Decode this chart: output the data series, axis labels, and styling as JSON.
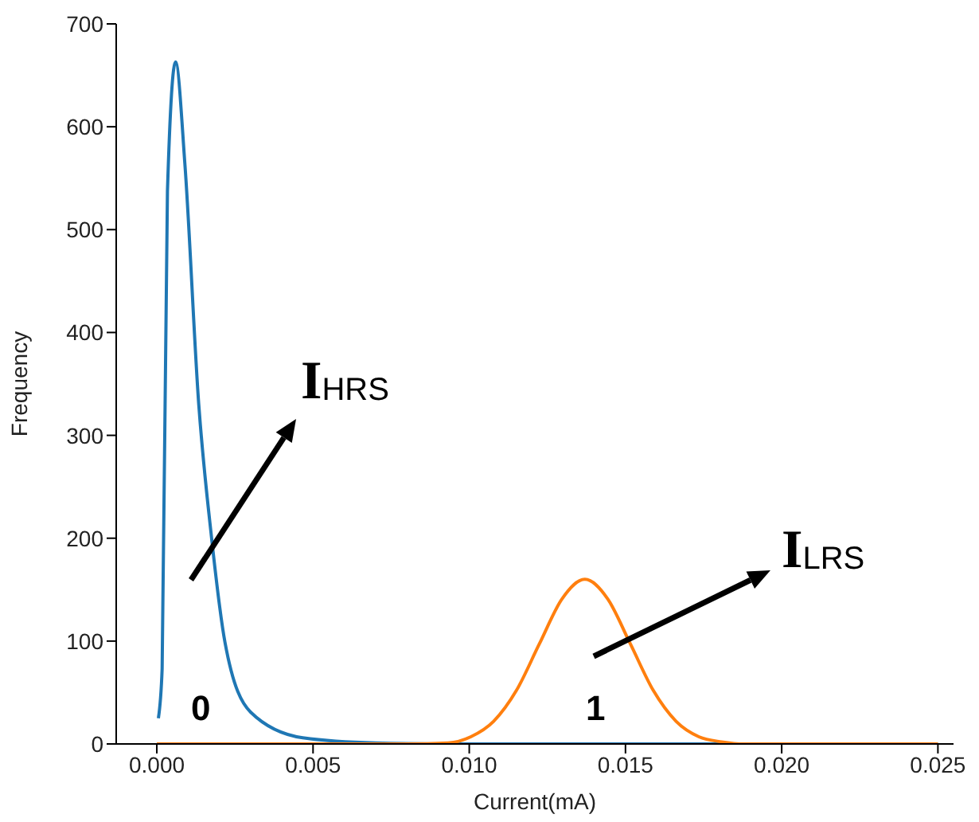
{
  "chart_data": {
    "type": "line",
    "xlabel": "Current(mA)",
    "ylabel": "Frequency",
    "xlim": [
      -0.0013,
      0.0255
    ],
    "ylim": [
      0,
      700
    ],
    "xticks": [
      {
        "value": 0,
        "label": "0.000"
      },
      {
        "value": 0.005,
        "label": "0.005"
      },
      {
        "value": 0.01,
        "label": "0.010"
      },
      {
        "value": 0.015,
        "label": "0.015"
      },
      {
        "value": 0.02,
        "label": "0.020"
      },
      {
        "value": 0.025,
        "label": "0.025"
      }
    ],
    "yticks": [
      0,
      100,
      200,
      300,
      400,
      500,
      600,
      700
    ],
    "grid": false,
    "marker": "none",
    "line_style": "solid",
    "series": [
      {
        "color": "#1f77b4",
        "x": [
          5e-05,
          0.00017,
          0.00034,
          0.0006,
          0.0009,
          0.00134,
          0.00175,
          0.00218,
          0.003,
          0.00467,
          0.007,
          0.01,
          0.015,
          0.02,
          0.025
        ],
        "values": [
          25,
          73,
          537,
          663,
          563,
          331,
          201,
          99,
          31,
          6,
          1,
          0,
          0,
          0,
          0
        ]
      },
      {
        "color": "#ff7f0e",
        "x": [
          0,
          0.008,
          0.00932,
          0.01005,
          0.01078,
          0.01151,
          0.01224,
          0.01297,
          0.0137,
          0.01443,
          0.01516,
          0.01589,
          0.01662,
          0.01735,
          0.01808,
          0.01881,
          0.021,
          0.025
        ],
        "values": [
          0,
          0,
          1,
          7,
          22,
          52,
          97,
          141,
          160,
          141,
          97,
          52,
          22,
          7,
          2,
          0,
          0,
          0
        ]
      }
    ],
    "annotations": [
      "I$_{HRS}$",
      "I$_{LRS}$",
      "0",
      "1"
    ]
  }
}
